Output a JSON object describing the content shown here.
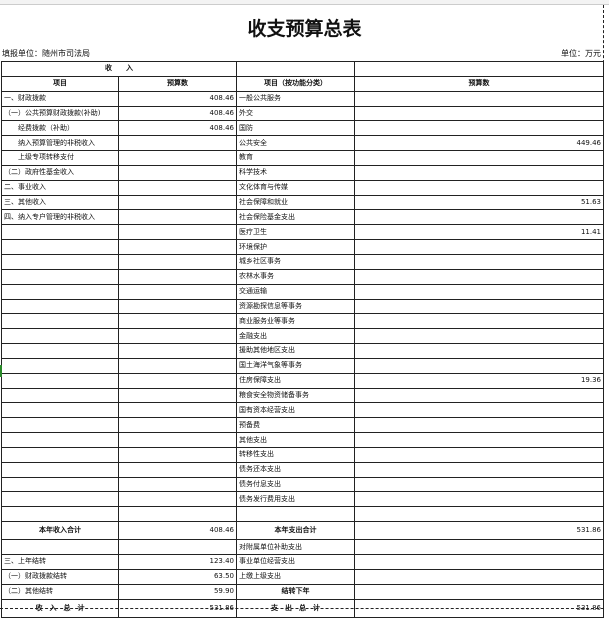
{
  "title": "收支预算总表",
  "unit_left": "填报单位：随州市司法局",
  "unit_right": "单位：万元",
  "header": {
    "income": "收　　入",
    "item": "项目",
    "budget": "预算数",
    "exp_item": "项目（按功能分类）",
    "exp_budget": "预算数"
  },
  "rows": [
    {
      "a": "一、财政拨款",
      "b": "408.46",
      "c": "一般公共服务",
      "d": ""
    },
    {
      "a": "（一）公共预算财政拨款(补助)",
      "b": "408.46",
      "c": "外交",
      "d": ""
    },
    {
      "a": "　　经费拨款（补助）",
      "b": "408.46",
      "c": "国防",
      "d": ""
    },
    {
      "a": "　　纳入预算管理的非税收入",
      "b": "",
      "c": "公共安全",
      "d": "449.46"
    },
    {
      "a": "　　上级专项转移支付",
      "b": "",
      "c": "教育",
      "d": ""
    },
    {
      "a": "（二）政府性基金收入",
      "b": "",
      "c": "科学技术",
      "d": ""
    },
    {
      "a": "二、事业收入",
      "b": "",
      "c": "文化体育与传媒",
      "d": ""
    },
    {
      "a": "三、其他收入",
      "b": "",
      "c": "社会保障和就业",
      "d": "51.63"
    },
    {
      "a": "四、纳入专户管理的非税收入",
      "b": "",
      "c": "社会保险基金支出",
      "d": ""
    },
    {
      "a": "",
      "b": "",
      "c": "医疗卫生",
      "d": "11.41"
    },
    {
      "a": "",
      "b": "",
      "c": "环境保护",
      "d": ""
    },
    {
      "a": "",
      "b": "",
      "c": "城乡社区事务",
      "d": ""
    },
    {
      "a": "",
      "b": "",
      "c": "农林水事务",
      "d": ""
    },
    {
      "a": "",
      "b": "",
      "c": "交通运输",
      "d": ""
    },
    {
      "a": "",
      "b": "",
      "c": "资源勘探信息等事务",
      "d": ""
    },
    {
      "a": "",
      "b": "",
      "c": "商业服务业等事务",
      "d": ""
    },
    {
      "a": "",
      "b": "",
      "c": "金融支出",
      "d": ""
    },
    {
      "a": "",
      "b": "",
      "c": "援助其他地区支出",
      "d": ""
    },
    {
      "a": "",
      "b": "",
      "c": "国土海洋气象等事务",
      "d": ""
    },
    {
      "a": "",
      "b": "",
      "c": "住房保障支出",
      "d": "19.36"
    },
    {
      "a": "",
      "b": "",
      "c": "粮食安全物资储备事务",
      "d": ""
    },
    {
      "a": "",
      "b": "",
      "c": "国有资本经营支出",
      "d": ""
    },
    {
      "a": "",
      "b": "",
      "c": "预备费",
      "d": ""
    },
    {
      "a": "",
      "b": "",
      "c": "其他支出",
      "d": ""
    },
    {
      "a": "",
      "b": "",
      "c": "转移性支出",
      "d": ""
    },
    {
      "a": "",
      "b": "",
      "c": "债务还本支出",
      "d": ""
    },
    {
      "a": "",
      "b": "",
      "c": "债务付息支出",
      "d": ""
    },
    {
      "a": "",
      "b": "",
      "c": "债务发行费用支出",
      "d": ""
    },
    {
      "a": "",
      "b": "",
      "c": "",
      "d": ""
    }
  ],
  "total_year": {
    "a": "本年收入合计",
    "b": "408.46",
    "c": "本年支出合计",
    "d": "531.86"
  },
  "tail": [
    {
      "a": "",
      "b": "",
      "c": "对附属单位补助支出",
      "d": ""
    },
    {
      "a": "三、上年结转",
      "b": "123.40",
      "c": "事业单位经营支出",
      "d": ""
    },
    {
      "a": "（一）财政拨款结转",
      "b": "63.50",
      "c": "上缴上级支出",
      "d": ""
    },
    {
      "a": "（二）其他结转",
      "b": "59.90",
      "c": "结转下年",
      "d": "",
      "cbold": true
    }
  ],
  "grand": {
    "a": "收　入　总　计",
    "b": "531.86",
    "c": "支　出　总　计",
    "d": "531.86"
  }
}
